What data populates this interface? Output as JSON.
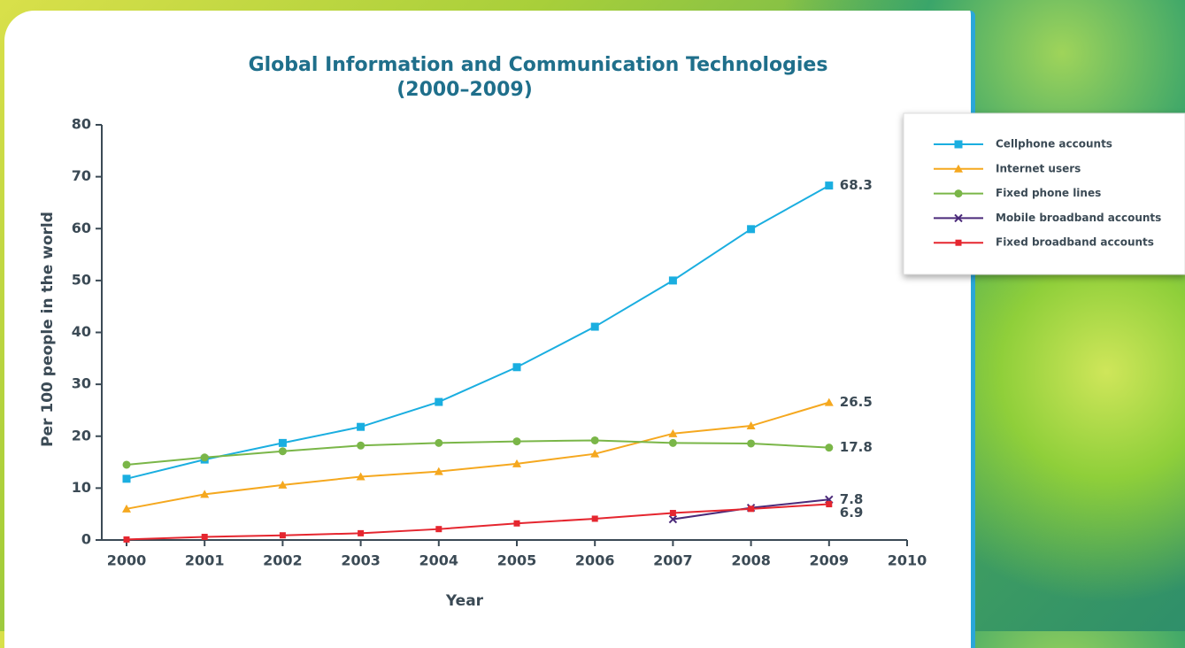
{
  "chart_data": {
    "type": "line",
    "title": "Global Information and Communication Technologies",
    "subtitle": "(2000–2009)",
    "x_label": "Year",
    "y_label": "Per 100 people in the world",
    "x": [
      2000,
      2001,
      2002,
      2003,
      2004,
      2005,
      2006,
      2007,
      2008,
      2009
    ],
    "xlim": [
      2000,
      2010
    ],
    "xticks": [
      2000,
      2001,
      2002,
      2003,
      2004,
      2005,
      2006,
      2007,
      2008,
      2009,
      2010
    ],
    "ylim": [
      0,
      80
    ],
    "yticks": [
      0,
      10,
      20,
      30,
      40,
      50,
      60,
      70,
      80
    ],
    "grid": false,
    "legend": "right",
    "series": [
      {
        "name": "Cellphone accounts",
        "color": "#1aaee0",
        "marker": "square",
        "values": [
          11.8,
          15.5,
          18.7,
          21.8,
          26.6,
          33.3,
          41.1,
          50.0,
          59.9,
          68.3
        ],
        "value_labels": [
          null,
          null,
          null,
          null,
          null,
          null,
          null,
          null,
          null,
          "68.3"
        ]
      },
      {
        "name": "Internet users",
        "color": "#f5a81f",
        "marker": "triangle",
        "values": [
          6.0,
          8.8,
          10.6,
          12.2,
          13.2,
          14.7,
          16.6,
          20.5,
          22.0,
          26.5
        ],
        "value_labels": [
          null,
          null,
          null,
          null,
          null,
          null,
          null,
          null,
          null,
          "26.5"
        ]
      },
      {
        "name": "Fixed phone lines",
        "color": "#7ab648",
        "marker": "circle",
        "values": [
          14.5,
          15.9,
          17.1,
          18.2,
          18.7,
          19.0,
          19.2,
          18.7,
          18.6,
          17.8
        ],
        "value_labels": [
          null,
          null,
          null,
          null,
          null,
          null,
          null,
          null,
          null,
          "17.8"
        ]
      },
      {
        "name": "Mobile broadband accounts",
        "color": "#4b2a7a",
        "marker": "x",
        "values": [
          null,
          null,
          null,
          null,
          null,
          null,
          null,
          4.0,
          6.2,
          7.8
        ],
        "value_labels": [
          null,
          null,
          null,
          null,
          null,
          null,
          null,
          null,
          null,
          "7.8"
        ]
      },
      {
        "name": "Fixed broadband accounts",
        "color": "#e5262f",
        "marker": "smallsquare",
        "values": [
          0.1,
          0.6,
          0.9,
          1.3,
          2.1,
          3.2,
          4.1,
          5.2,
          6.0,
          6.9
        ],
        "value_labels": [
          null,
          null,
          null,
          null,
          null,
          null,
          null,
          null,
          null,
          "6.9"
        ]
      }
    ]
  }
}
